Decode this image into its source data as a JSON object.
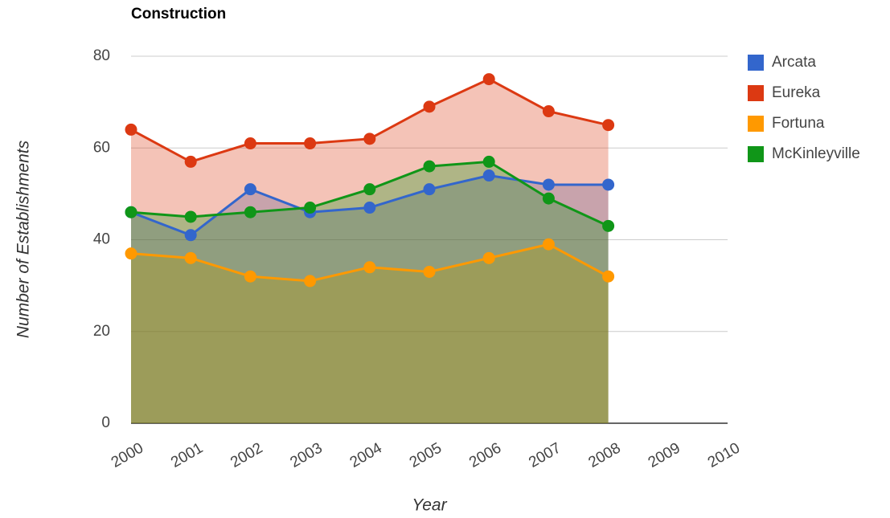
{
  "chart_data": {
    "type": "area",
    "title": "Construction",
    "x_label": "Year",
    "y_label": "Number of Establishments",
    "x": [
      2000,
      2001,
      2002,
      2003,
      2004,
      2005,
      2006,
      2007,
      2008
    ],
    "series": [
      {
        "name": "Arcata",
        "color": "#3366cc",
        "values": [
          46,
          41,
          51,
          46,
          47,
          51,
          54,
          52,
          52
        ]
      },
      {
        "name": "Eureka",
        "color": "#dc3912",
        "values": [
          64,
          57,
          61,
          61,
          62,
          69,
          75,
          68,
          65
        ]
      },
      {
        "name": "Fortuna",
        "color": "#ff9900",
        "values": [
          37,
          36,
          32,
          31,
          34,
          33,
          36,
          39,
          32
        ]
      },
      {
        "name": "McKinleyville",
        "color": "#109618",
        "values": [
          46,
          45,
          46,
          47,
          51,
          56,
          57,
          49,
          43
        ]
      }
    ],
    "xlim": [
      2000,
      2010
    ],
    "xticks": [
      2000,
      2001,
      2002,
      2003,
      2004,
      2005,
      2006,
      2007,
      2008,
      2009,
      2010
    ],
    "ylim": [
      0,
      80
    ],
    "yticks": [
      0,
      20,
      40,
      60,
      80
    ],
    "grid": true,
    "legend": "right"
  }
}
